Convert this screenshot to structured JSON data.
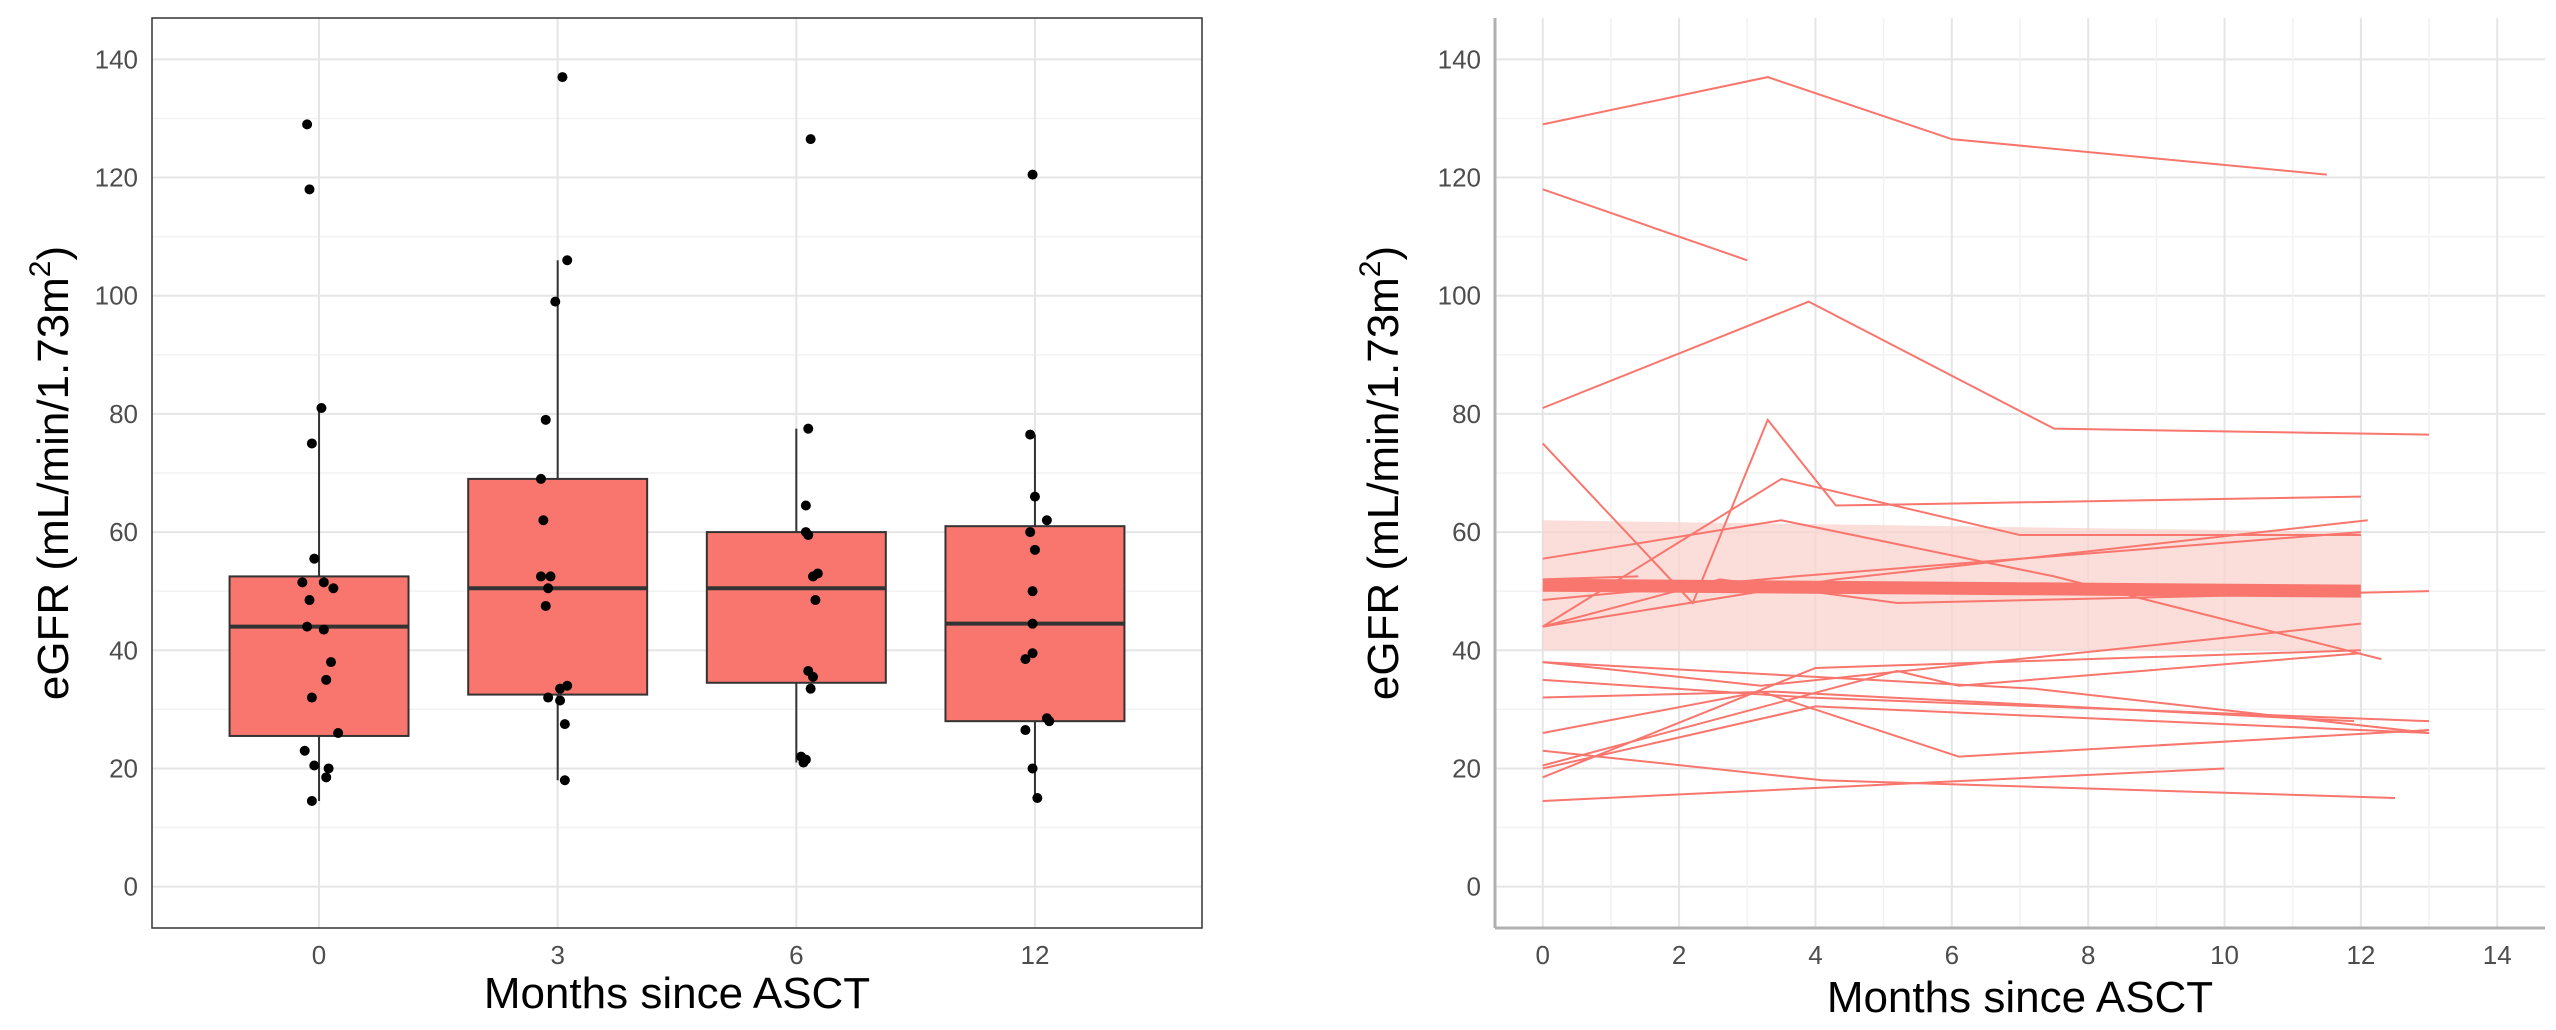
{
  "colors": {
    "fill": "#F8766D",
    "line": "#F8766D",
    "band": "#FAD1CE",
    "point": "#000000",
    "median": "#333333"
  },
  "chart_data": [
    {
      "type": "box",
      "xlabel": "Months since ASCT",
      "ylabel": "eGFR (mL/min/1.73m2)",
      "ylabel_main": "eGFR (mL/min/1.73m",
      "ylabel_sup": "2",
      "ylabel_end": ")",
      "ylim": [
        -7,
        147
      ],
      "yticks": [
        "0",
        "20",
        "40",
        "60",
        "80",
        "100",
        "120",
        "140"
      ],
      "categories": [
        "0",
        "3",
        "6",
        "12"
      ],
      "boxes": [
        {
          "q1": 25.5,
          "median": 44,
          "q3": 52.5,
          "whisker_low": 14.5,
          "whisker_high": 81
        },
        {
          "q1": 32.5,
          "median": 50.5,
          "q3": 69,
          "whisker_low": 18,
          "whisker_high": 106
        },
        {
          "q1": 34.5,
          "median": 50.5,
          "q3": 60,
          "whisker_low": 21,
          "whisker_high": 77.5
        },
        {
          "q1": 28,
          "median": 44.5,
          "q3": 61,
          "whisker_low": 15,
          "whisker_high": 76.5
        }
      ],
      "points": [
        {
          "x": 0,
          "jitter": -0.05,
          "y": 129
        },
        {
          "x": 0,
          "jitter": -0.04,
          "y": 118
        },
        {
          "x": 0,
          "jitter": 0.01,
          "y": 81
        },
        {
          "x": 0,
          "jitter": -0.03,
          "y": 75
        },
        {
          "x": 0,
          "jitter": -0.02,
          "y": 55.5
        },
        {
          "x": 0,
          "jitter": -0.07,
          "y": 51.5
        },
        {
          "x": 0,
          "jitter": 0.02,
          "y": 51.5
        },
        {
          "x": 0,
          "jitter": 0.06,
          "y": 50.5
        },
        {
          "x": 0,
          "jitter": -0.04,
          "y": 48.5
        },
        {
          "x": 0,
          "jitter": -0.05,
          "y": 44
        },
        {
          "x": 0,
          "jitter": 0.02,
          "y": 43.5
        },
        {
          "x": 0,
          "jitter": 0.05,
          "y": 38
        },
        {
          "x": 0,
          "jitter": 0.03,
          "y": 35
        },
        {
          "x": 0,
          "jitter": -0.03,
          "y": 32
        },
        {
          "x": 0,
          "jitter": 0.08,
          "y": 26
        },
        {
          "x": 0,
          "jitter": -0.06,
          "y": 23
        },
        {
          "x": 0,
          "jitter": -0.02,
          "y": 20.5
        },
        {
          "x": 0,
          "jitter": 0.04,
          "y": 20
        },
        {
          "x": 0,
          "jitter": 0.03,
          "y": 18.5
        },
        {
          "x": 0,
          "jitter": -0.03,
          "y": 14.5
        },
        {
          "x": 1,
          "jitter": 0.02,
          "y": 137
        },
        {
          "x": 1,
          "jitter": 0.04,
          "y": 106
        },
        {
          "x": 1,
          "jitter": -0.01,
          "y": 99
        },
        {
          "x": 1,
          "jitter": -0.05,
          "y": 79
        },
        {
          "x": 1,
          "jitter": -0.07,
          "y": 69
        },
        {
          "x": 1,
          "jitter": -0.06,
          "y": 62
        },
        {
          "x": 1,
          "jitter": -0.07,
          "y": 52.5
        },
        {
          "x": 1,
          "jitter": -0.03,
          "y": 52.5
        },
        {
          "x": 1,
          "jitter": -0.04,
          "y": 50.5
        },
        {
          "x": 1,
          "jitter": -0.05,
          "y": 47.5
        },
        {
          "x": 1,
          "jitter": 0.04,
          "y": 34
        },
        {
          "x": 1,
          "jitter": 0.01,
          "y": 33.5
        },
        {
          "x": 1,
          "jitter": -0.04,
          "y": 32
        },
        {
          "x": 1,
          "jitter": 0.01,
          "y": 31.5
        },
        {
          "x": 1,
          "jitter": 0.03,
          "y": 27.5
        },
        {
          "x": 1,
          "jitter": 0.03,
          "y": 18
        },
        {
          "x": 2,
          "jitter": 0.06,
          "y": 126.5
        },
        {
          "x": 2,
          "jitter": 0.05,
          "y": 77.5
        },
        {
          "x": 2,
          "jitter": 0.04,
          "y": 64.5
        },
        {
          "x": 2,
          "jitter": 0.04,
          "y": 60
        },
        {
          "x": 2,
          "jitter": 0.05,
          "y": 59.5
        },
        {
          "x": 2,
          "jitter": 0.09,
          "y": 53
        },
        {
          "x": 2,
          "jitter": 0.07,
          "y": 52.5
        },
        {
          "x": 2,
          "jitter": 0.08,
          "y": 48.5
        },
        {
          "x": 2,
          "jitter": 0.05,
          "y": 36.5
        },
        {
          "x": 2,
          "jitter": 0.07,
          "y": 35.5
        },
        {
          "x": 2,
          "jitter": 0.06,
          "y": 33.5
        },
        {
          "x": 2,
          "jitter": 0.02,
          "y": 22
        },
        {
          "x": 2,
          "jitter": 0.04,
          "y": 21.5
        },
        {
          "x": 2,
          "jitter": 0.03,
          "y": 21
        },
        {
          "x": 3,
          "jitter": -0.01,
          "y": 120.5
        },
        {
          "x": 3,
          "jitter": -0.02,
          "y": 76.5
        },
        {
          "x": 3,
          "jitter": 0.0,
          "y": 66
        },
        {
          "x": 3,
          "jitter": 0.05,
          "y": 62
        },
        {
          "x": 3,
          "jitter": -0.02,
          "y": 60
        },
        {
          "x": 3,
          "jitter": 0.0,
          "y": 57
        },
        {
          "x": 3,
          "jitter": -0.01,
          "y": 50
        },
        {
          "x": 3,
          "jitter": -0.01,
          "y": 44.5
        },
        {
          "x": 3,
          "jitter": -0.01,
          "y": 39.5
        },
        {
          "x": 3,
          "jitter": -0.04,
          "y": 38.5
        },
        {
          "x": 3,
          "jitter": 0.05,
          "y": 28.5
        },
        {
          "x": 3,
          "jitter": 0.06,
          "y": 28
        },
        {
          "x": 3,
          "jitter": -0.04,
          "y": 26.5
        },
        {
          "x": 3,
          "jitter": -0.01,
          "y": 20
        },
        {
          "x": 3,
          "jitter": 0.01,
          "y": 15
        }
      ]
    },
    {
      "type": "line",
      "xlabel": "Months since ASCT",
      "ylabel": "eGFR (mL/min/1.73m2)",
      "ylabel_main": "eGFR (mL/min/1.73m",
      "ylabel_sup": "2",
      "ylabel_end": ")",
      "xlim": [
        -0.7,
        14.7
      ],
      "ylim": [
        -7,
        147
      ],
      "xticks": [
        "0",
        "2",
        "4",
        "6",
        "8",
        "10",
        "12",
        "14"
      ],
      "yticks": [
        "0",
        "20",
        "40",
        "60",
        "80",
        "100",
        "120",
        "140"
      ],
      "series": [
        {
          "x": [
            0,
            3.3,
            6,
            11.5
          ],
          "y": [
            129,
            137,
            126.5,
            120.5
          ]
        },
        {
          "x": [
            0,
            3
          ],
          "y": [
            118,
            106
          ]
        },
        {
          "x": [
            0,
            3.9,
            7.5,
            13
          ],
          "y": [
            81,
            99,
            77.5,
            76.5
          ]
        },
        {
          "x": [
            0,
            2.2,
            3.3,
            4.3,
            12
          ],
          "y": [
            75,
            48,
            79,
            64.5,
            66
          ]
        },
        {
          "x": [
            0,
            1.4
          ],
          "y": [
            52,
            52.5
          ]
        },
        {
          "x": [
            0,
            3.5,
            7,
            12
          ],
          "y": [
            44,
            69,
            59.5,
            59.5
          ]
        },
        {
          "x": [
            0,
            3.5,
            7.5,
            12.3
          ],
          "y": [
            55.5,
            62,
            52.5,
            38.5
          ]
        },
        {
          "x": [
            0,
            3.7,
            12
          ],
          "y": [
            48.5,
            52.5,
            60
          ]
        },
        {
          "x": [
            0,
            4.3,
            12.1
          ],
          "y": [
            44,
            52,
            62
          ]
        },
        {
          "x": [
            0,
            3.2,
            12
          ],
          "y": [
            38,
            34,
            44.5
          ]
        },
        {
          "x": [
            0,
            3.9,
            13
          ],
          "y": [
            35,
            32,
            28
          ]
        },
        {
          "x": [
            0,
            3.4,
            11.9
          ],
          "y": [
            32,
            33,
            28
          ]
        },
        {
          "x": [
            0,
            3.2,
            6.1,
            13
          ],
          "y": [
            26,
            33,
            22,
            26.5
          ]
        },
        {
          "x": [
            0,
            4.1,
            12.5
          ],
          "y": [
            23,
            18,
            15
          ]
        },
        {
          "x": [
            0,
            5.2,
            6.1,
            12
          ],
          "y": [
            20.5,
            36.5,
            34,
            39.5
          ]
        },
        {
          "x": [
            0,
            4,
            12
          ],
          "y": [
            18.5,
            37,
            40
          ]
        },
        {
          "x": [
            0,
            10
          ],
          "y": [
            14.5,
            20
          ]
        },
        {
          "x": [
            0,
            7.2,
            13
          ],
          "y": [
            38,
            33.5,
            26
          ]
        },
        {
          "x": [
            0,
            4,
            13
          ],
          "y": [
            20,
            30.5,
            26
          ]
        },
        {
          "x": [
            0,
            2.6,
            5.2,
            13
          ],
          "y": [
            44,
            52,
            48,
            50
          ]
        }
      ],
      "mean_line": {
        "x": [
          0,
          12
        ],
        "y": [
          51,
          50
        ]
      },
      "ci_band": {
        "x": [
          0,
          12
        ],
        "low": [
          40,
          40
        ],
        "high": [
          62,
          60
        ]
      }
    }
  ]
}
